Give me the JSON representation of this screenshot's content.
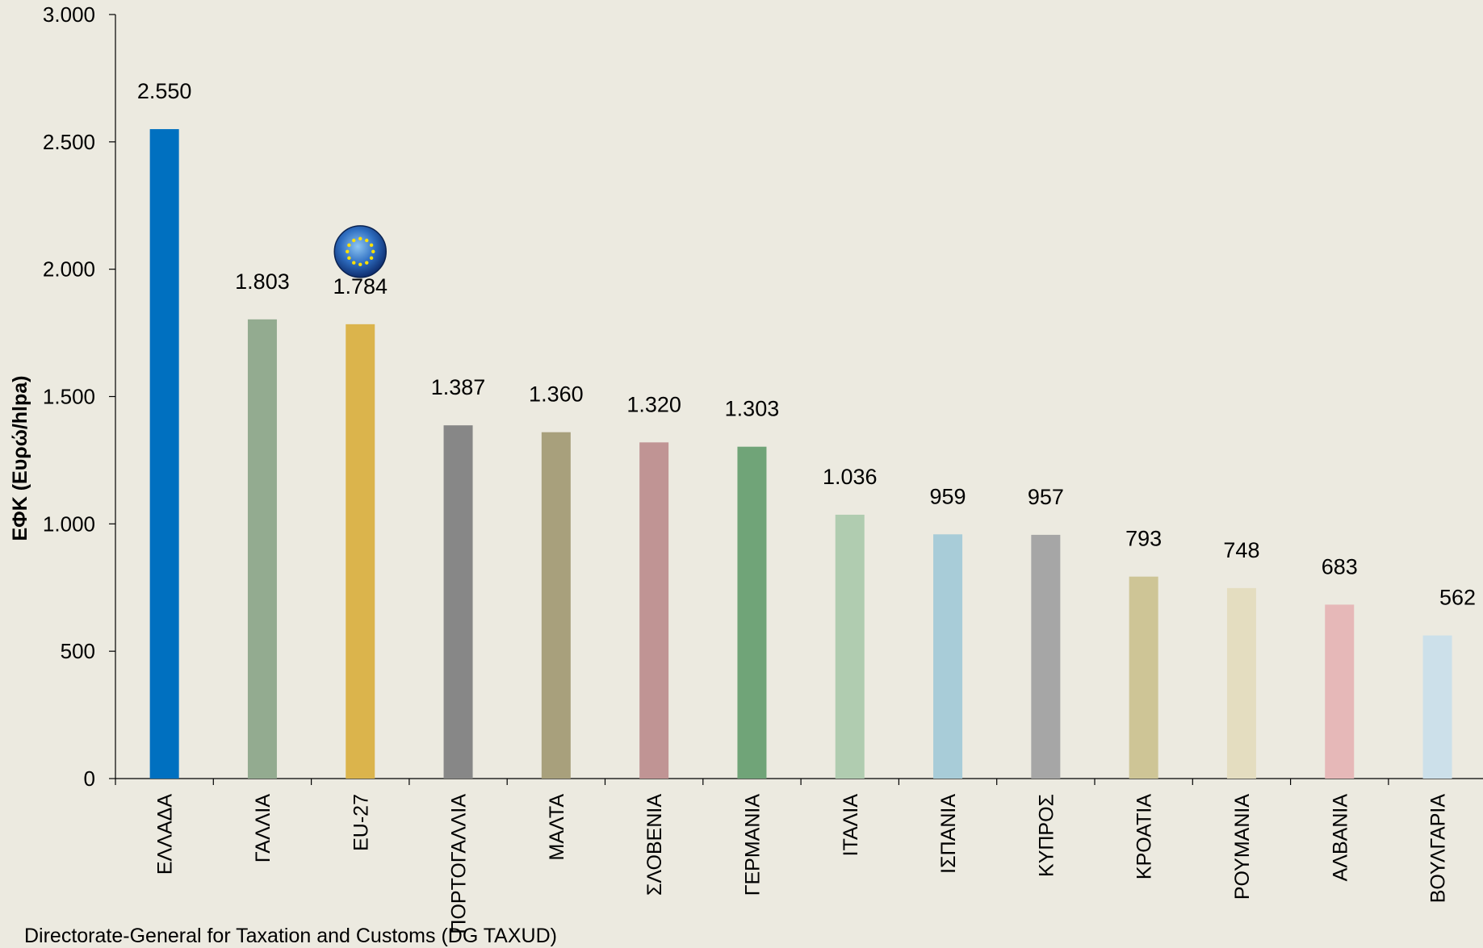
{
  "chart_data": {
    "type": "bar",
    "ylabel": "ΕΦΚ (Ευρώ/hlpa)",
    "ylim": [
      0,
      3000
    ],
    "yticks": [
      0,
      500,
      1000,
      1500,
      2000,
      2500,
      3000
    ],
    "ytick_labels": [
      "0",
      "500",
      "1.000",
      "1.500",
      "2.000",
      "2.500",
      "3.000"
    ],
    "grid": false,
    "legend": "none",
    "categories": [
      "ΕΛΛΑΔΑ",
      "ΓΑΛΛΙΑ",
      "EU-27",
      "ΠΟΡΤΟΓΑΛΛΙΑ",
      "ΜΑΛΤΑ",
      "ΣΛΟΒΕΝΙΑ",
      "ΓΕΡΜΑΝΙΑ",
      "ΙΤΑΛΙΑ",
      "ΙΣΠΑΝΙΑ",
      "ΚΥΠΡΟΣ",
      "ΚΡΟΑΤΙΑ",
      "ΡΟΥΜΑΝΙΑ",
      "ΑΛΒΑΝΙΑ",
      "ΒΟΥΛΓΑΡΙΑ"
    ],
    "values": [
      2550,
      1803,
      1784,
      1387,
      1360,
      1320,
      1303,
      1036,
      959,
      957,
      793,
      748,
      683,
      562
    ],
    "value_labels": [
      "2.550",
      "1.803",
      "1.784",
      "1.387",
      "1.360",
      "1.320",
      "1.303",
      "1.036",
      "959",
      "957",
      "793",
      "748",
      "683",
      "562"
    ],
    "colors": [
      "#0070C0",
      "#93AB90",
      "#DBB44C",
      "#878787",
      "#A8A07C",
      "#C09494",
      "#70A478",
      "#B0CCB0",
      "#A8CCD8",
      "#A6A6A6",
      "#CEC596",
      "#E4DDC0",
      "#E6B8B8",
      "#CCE0EA"
    ],
    "highlight_icon": "eu-flag-icon",
    "highlight_category": "EU-27"
  },
  "source_note": "Directorate-General for Taxation and Customs (DG TAXUD)"
}
